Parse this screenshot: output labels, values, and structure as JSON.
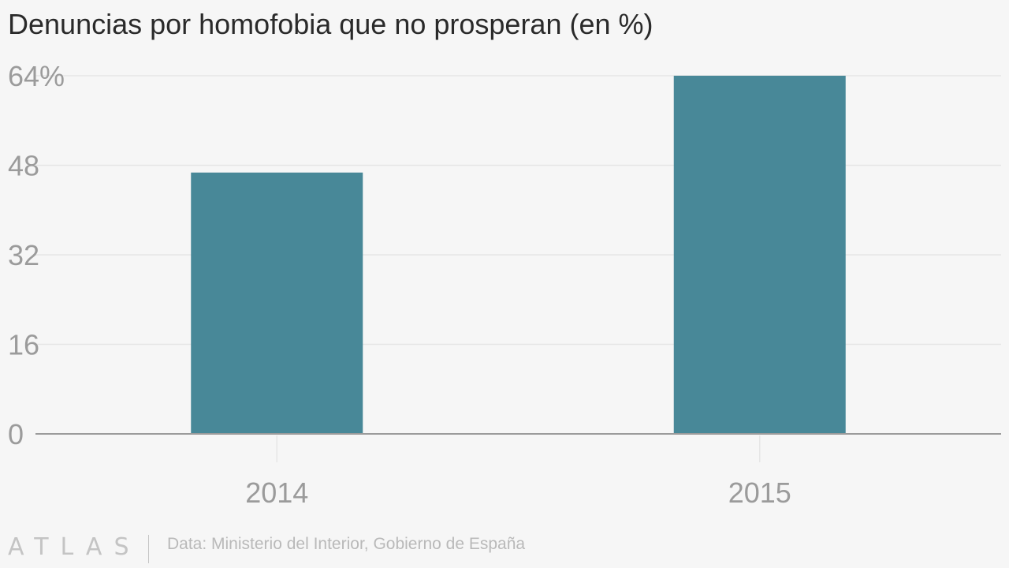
{
  "title": "Denuncias por homofobia que no prosperan (en %)",
  "colors": {
    "bar": "#488898",
    "grid": "#e6e6e6",
    "axis": "#9b9b9b",
    "tick_text": "#9b9b9b"
  },
  "chart_data": {
    "type": "bar",
    "categories": [
      "2014",
      "2015"
    ],
    "values": [
      46.7,
      64
    ],
    "title": "Denuncias por homofobia que no prosperan (en %)",
    "xlabel": "",
    "ylabel": "",
    "ylim": [
      0,
      64
    ],
    "yticks": [
      0,
      16,
      32,
      48,
      64
    ],
    "ytick_labels": [
      "0",
      "16",
      "32",
      "48",
      "64%"
    ],
    "grid": true
  },
  "footer": {
    "logo": "ATLAS",
    "source": "Data: Ministerio del Interior, Gobierno de España"
  }
}
